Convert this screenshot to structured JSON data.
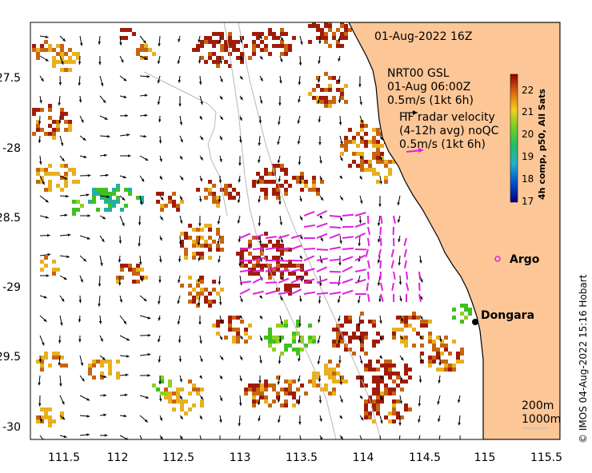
{
  "timestamp": "01-Aug-2022 16Z",
  "model": {
    "name": "NRT00 GSL",
    "time": "01-Aug 06:00Z",
    "scale_label": "0.5m/s (1kt 6h)"
  },
  "radar": {
    "line1": "HF radar velocity",
    "line2": "(4-12h avg) noQC",
    "scale_label": "0.5m/s (1kt 6h)",
    "color": "#e020e0"
  },
  "colorbar": {
    "title": "4h comp, p50, All Sats",
    "ticks": [
      "22",
      "21",
      "20",
      "19",
      "18",
      "17"
    ]
  },
  "x_ticks": [
    "111.5",
    "112",
    "112.5",
    "113",
    "113.5",
    "114",
    "114.5",
    "115",
    "115.5"
  ],
  "y_ticks": [
    "-27.5",
    "-28",
    "-28.5",
    "-29",
    "-29.5",
    "-30"
  ],
  "places": {
    "argo": "Argo",
    "dongara": "Dongara"
  },
  "contours": {
    "c200": "200m",
    "c1000": "1000m"
  },
  "credit": "© IMOS 04-Aug-2022 15:16 Hobart",
  "colors": {
    "land": "#fcc696",
    "warm": "#c86410",
    "hot": "#a01c08",
    "mid": "#e8b020",
    "cool": "#40c020",
    "cold": "#20b0a0"
  }
}
